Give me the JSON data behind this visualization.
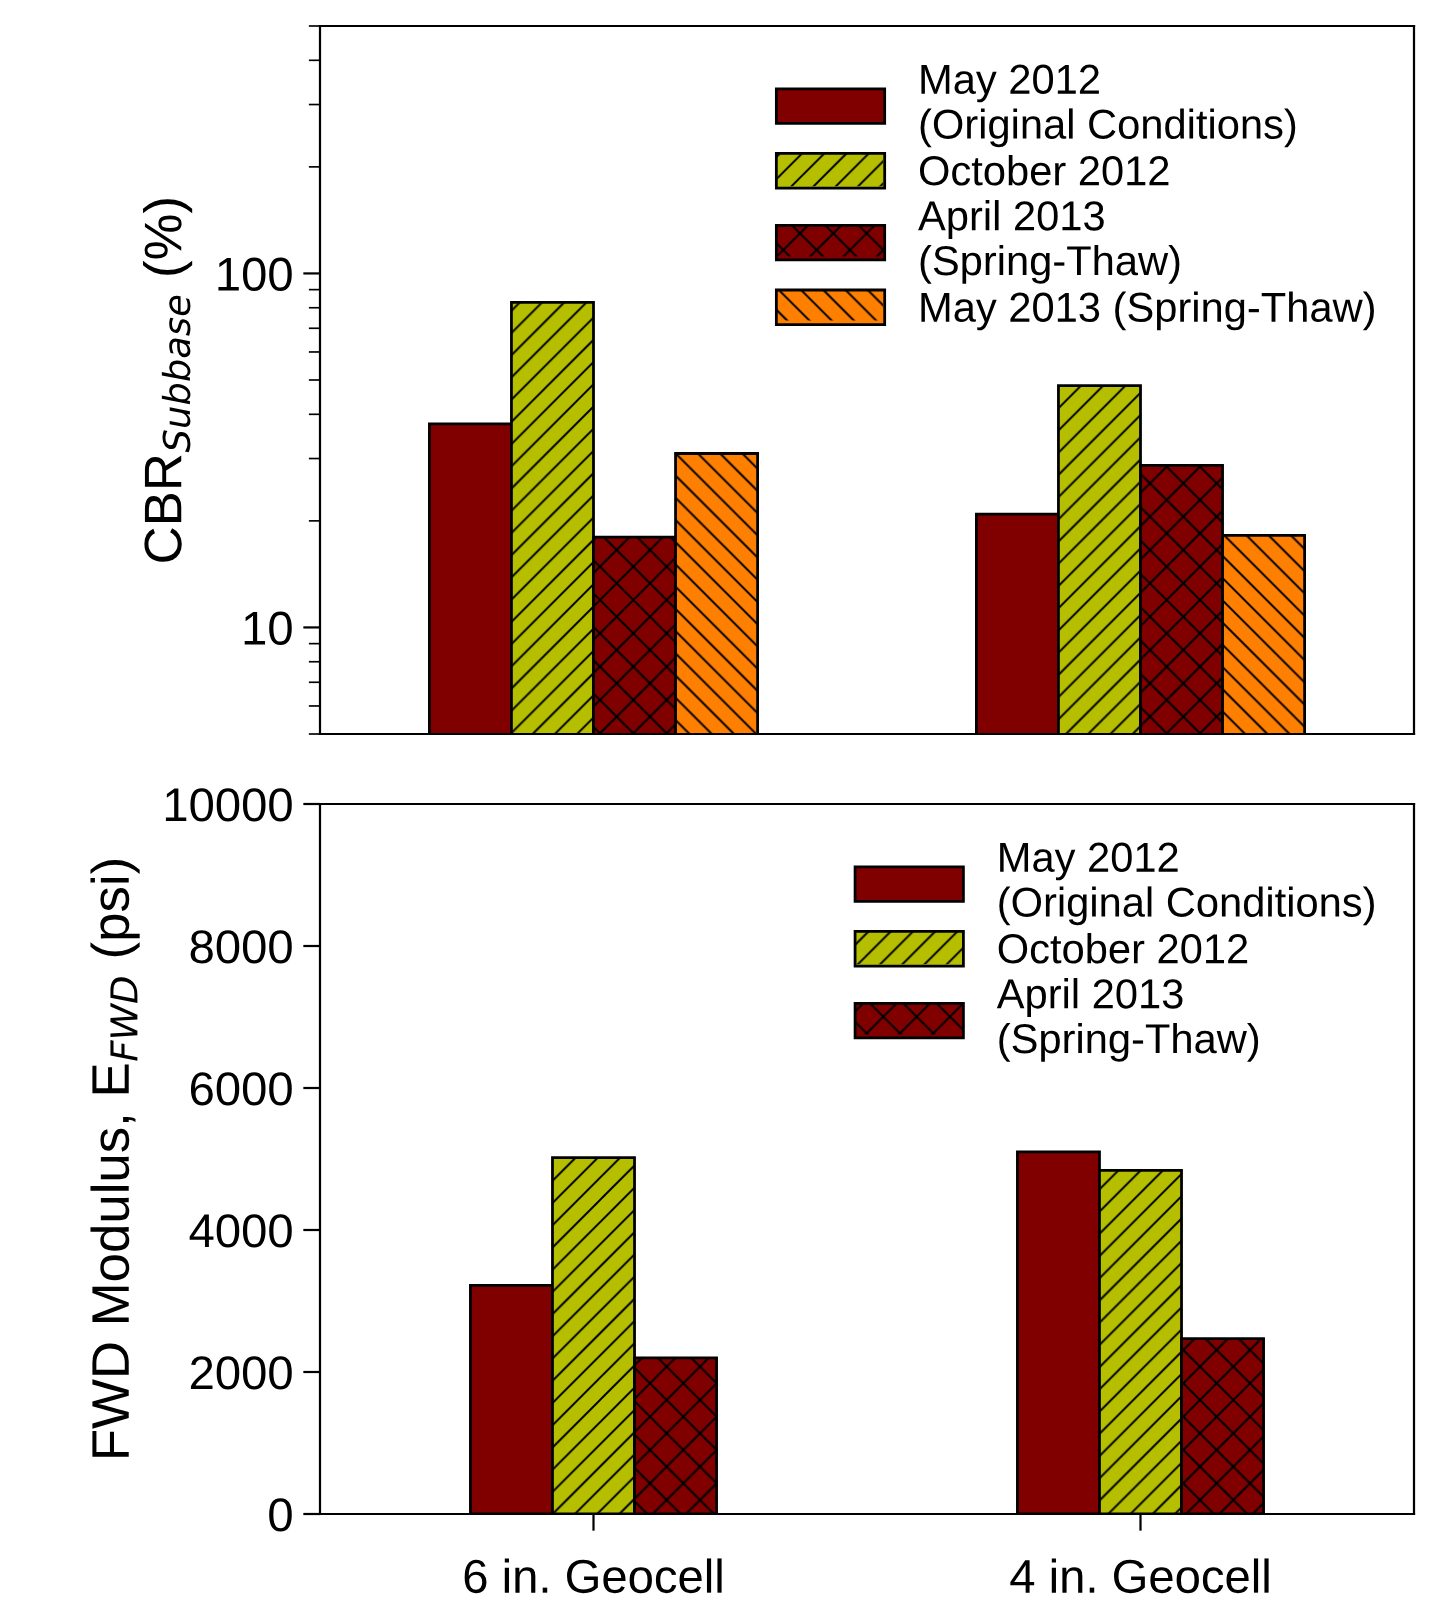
{
  "chart_data": [
    {
      "type": "bar",
      "ylabel": "CBR$_{Subbase}$ (%)",
      "categories": [
        null,
        null
      ],
      "log": "y",
      "ylim": [
        5,
        500
      ],
      "yticks": [
        10,
        100
      ],
      "tick_labels": "y",
      "legend": "top right",
      "grid": false,
      "series": [
        {
          "name": "May 2012\n(Original Conditions)",
          "color": "#800000",
          "values": [
            37.6,
            20.9
          ]
        },
        {
          "name": "October 2012",
          "color": "#b5bf00",
          "values": [
            82.8,
            48.2
          ]
        },
        {
          "name": "April 2013\n(Spring-Thaw)",
          "color": "#800000",
          "values": [
            18.0,
            28.7
          ]
        },
        {
          "name": "May 2013 (Spring-Thaw)",
          "color": "#ff8000",
          "values": [
            31.0,
            18.2
          ]
        }
      ]
    },
    {
      "type": "bar",
      "ylabel": "FWD Modulus, E$_{FWD}$ (psi)",
      "categories": [
        "6 in. Geocell",
        "4 in. Geocell"
      ],
      "ylim": [
        0,
        10000
      ],
      "yticks": [
        0,
        2000,
        4000,
        6000,
        8000,
        10000
      ],
      "legend": "top right",
      "grid": false,
      "series": [
        {
          "name": "May 2012\n(Original Conditions)",
          "color": "#800000",
          "values": [
            3220,
            5100
          ]
        },
        {
          "name": "October 2012",
          "color": "#b5bf00",
          "values": [
            5020,
            4840
          ]
        },
        {
          "name": "April 2013\n(Spring-Thaw)",
          "color": "#800000",
          "values": [
            2200,
            2470
          ]
        }
      ]
    }
  ]
}
